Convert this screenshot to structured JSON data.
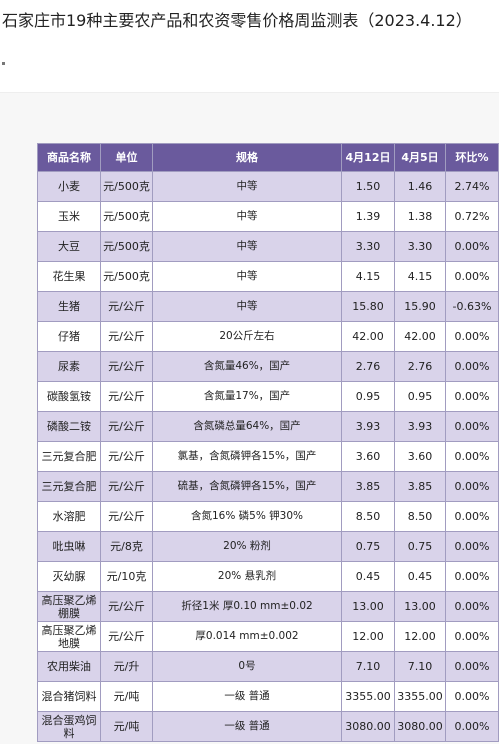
{
  "page": {
    "title": "石家庄市19种主要农产品和农资零售价格周监测表（2023.4.12）"
  },
  "table": {
    "headers": [
      "商品名称",
      "单位",
      "规格",
      "4月12日",
      "4月5日",
      "环比%"
    ],
    "rows": [
      [
        "小麦",
        "元/500克",
        "中等",
        "1.50",
        "1.46",
        "2.74%"
      ],
      [
        "玉米",
        "元/500克",
        "中等",
        "1.39",
        "1.38",
        "0.72%"
      ],
      [
        "大豆",
        "元/500克",
        "中等",
        "3.30",
        "3.30",
        "0.00%"
      ],
      [
        "花生果",
        "元/500克",
        "中等",
        "4.15",
        "4.15",
        "0.00%"
      ],
      [
        "生猪",
        "元/公斤",
        "中等",
        "15.80",
        "15.90",
        "-0.63%"
      ],
      [
        "仔猪",
        "元/公斤",
        "20公斤左右",
        "42.00",
        "42.00",
        "0.00%"
      ],
      [
        "尿素",
        "元/公斤",
        "含氮量46%，国产",
        "2.76",
        "2.76",
        "0.00%"
      ],
      [
        "碳酸氢铵",
        "元/公斤",
        "含氮量17%，国产",
        "0.95",
        "0.95",
        "0.00%"
      ],
      [
        "磷酸二铵",
        "元/公斤",
        "含氮磷总量64%，国产",
        "3.93",
        "3.93",
        "0.00%"
      ],
      [
        "三元复合肥",
        "元/公斤",
        "氯基，含氮磷钾各15%，国产",
        "3.60",
        "3.60",
        "0.00%"
      ],
      [
        "三元复合肥",
        "元/公斤",
        "硫基，含氮磷钾各15%，国产",
        "3.85",
        "3.85",
        "0.00%"
      ],
      [
        "水溶肥",
        "元/公斤",
        "含氮16% 磷5% 钾30%",
        "8.50",
        "8.50",
        "0.00%"
      ],
      [
        "吡虫啉",
        "元/8克",
        "20% 粉剂",
        "0.75",
        "0.75",
        "0.00%"
      ],
      [
        "灭幼脲",
        "元/10克",
        "20% 悬乳剂",
        "0.45",
        "0.45",
        "0.00%"
      ],
      [
        "高压聚乙烯棚膜",
        "元/公斤",
        "折径1米 厚0.10 mm±0.02",
        "13.00",
        "13.00",
        "0.00%"
      ],
      [
        "高压聚乙烯地膜",
        "元/公斤",
        "厚0.014 mm±0.002",
        "12.00",
        "12.00",
        "0.00%"
      ],
      [
        "农用柴油",
        "元/升",
        "0号",
        "7.10",
        "7.10",
        "0.00%"
      ],
      [
        "混合猪饲料",
        "元/吨",
        "一级 普通",
        "3355.00",
        "3355.00",
        "0.00%"
      ],
      [
        "混合蛋鸡饲料",
        "元/吨",
        "一级 普通",
        "3080.00",
        "3080.00",
        "0.00%"
      ]
    ]
  }
}
